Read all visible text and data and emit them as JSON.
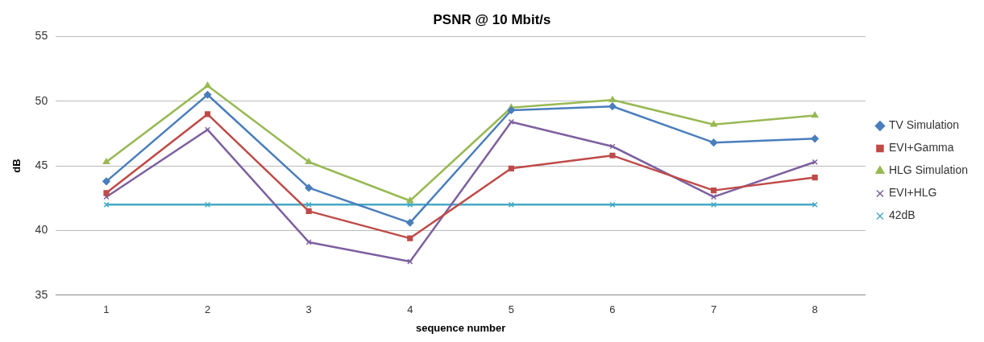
{
  "chart_data": {
    "type": "line",
    "title": "PSNR @ 10 Mbit/s",
    "xlabel": "sequence number",
    "ylabel": "dB",
    "categories": [
      "1",
      "2",
      "3",
      "4",
      "5",
      "6",
      "7",
      "8"
    ],
    "series": [
      {
        "name": "TV Simulation",
        "color": "#4a7ebb",
        "marker": "diamond",
        "values": [
          43.8,
          50.5,
          43.3,
          40.6,
          49.3,
          49.6,
          46.8,
          47.1
        ]
      },
      {
        "name": "EVI+Gamma",
        "color": "#be4b48",
        "marker": "square",
        "values": [
          42.9,
          49.0,
          41.5,
          39.4,
          44.8,
          45.8,
          43.1,
          44.1
        ]
      },
      {
        "name": "HLG Simulation",
        "color": "#98b954",
        "marker": "triangle",
        "values": [
          45.3,
          51.2,
          45.3,
          42.3,
          49.5,
          50.1,
          48.2,
          48.9
        ]
      },
      {
        "name": "EVI+HLG",
        "color": "#7d60a0",
        "marker": "cross",
        "values": [
          42.6,
          47.8,
          39.1,
          37.6,
          48.4,
          46.5,
          42.6,
          45.3
        ]
      },
      {
        "name": "42dB",
        "color": "#46aac5",
        "marker": "cross",
        "values": [
          42,
          42,
          42,
          42,
          42,
          42,
          42,
          42
        ]
      }
    ],
    "ylim": [
      35,
      55
    ],
    "yticks": [
      35,
      40,
      45,
      50,
      55
    ],
    "grid": "y",
    "legend": "right",
    "line_style": "solid"
  }
}
